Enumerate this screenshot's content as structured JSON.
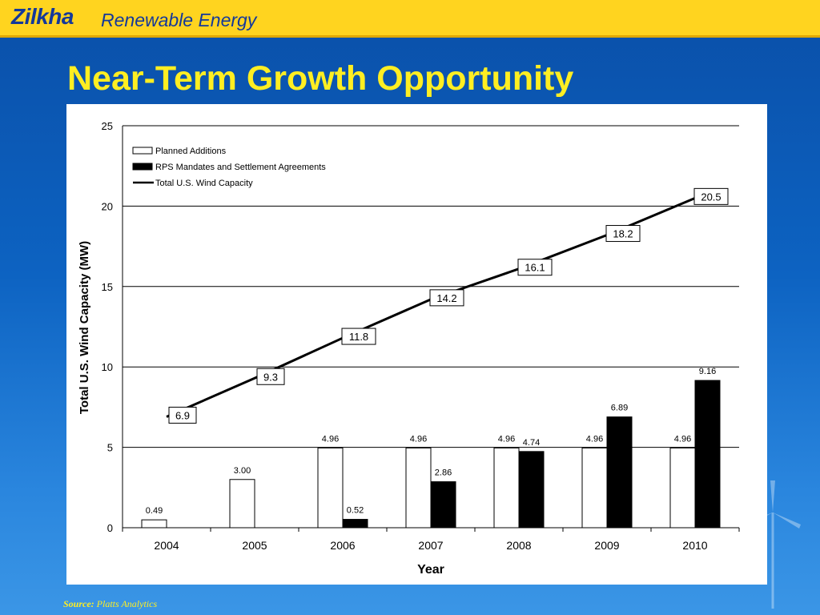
{
  "header": {
    "brand_name": "Zilkha",
    "brand_tagline": "Renewable Energy",
    "bar_color": "#ffd41f",
    "brand_color": "#14389a"
  },
  "slide": {
    "title": "Near-Term Growth Opportunity",
    "title_color": "#ffee22",
    "background_color": "#0d63c2"
  },
  "source": {
    "label": "Source:",
    "text": "Platts Analytics"
  },
  "chart_data": {
    "type": "bar",
    "xlabel": "Year",
    "ylabel": "Total U.S. Wind Capacity (MW)",
    "ylim": [
      0,
      25
    ],
    "yticks": [
      0,
      5,
      10,
      15,
      20,
      25
    ],
    "grid": true,
    "legend_position": "top-left",
    "categories": [
      "2004",
      "2005",
      "2006",
      "2007",
      "2008",
      "2009",
      "2010"
    ],
    "series": [
      {
        "name": "Planned Additions",
        "kind": "bar",
        "color": "#ffffff",
        "values": [
          0.49,
          3.0,
          4.96,
          4.96,
          4.96,
          4.96,
          4.96
        ],
        "labels": [
          "0.49",
          "3.00",
          "4.96",
          "4.96",
          "4.96",
          "4.96",
          "4.96"
        ]
      },
      {
        "name": "RPS Mandates and Settlement Agreements",
        "kind": "bar",
        "color": "#000000",
        "values": [
          null,
          null,
          0.52,
          2.86,
          4.74,
          6.89,
          9.16
        ],
        "labels": [
          "",
          "",
          "0.52",
          "2.86",
          "4.74",
          "6.89",
          "9.16"
        ]
      },
      {
        "name": "Total U.S. Wind Capacity",
        "kind": "line",
        "color": "#000000",
        "values": [
          6.9,
          9.3,
          11.8,
          14.2,
          16.1,
          18.2,
          20.5
        ],
        "labels": [
          "6.9",
          "9.3",
          "11.8",
          "14.2",
          "16.1",
          "18.2",
          "20.5"
        ]
      }
    ]
  }
}
